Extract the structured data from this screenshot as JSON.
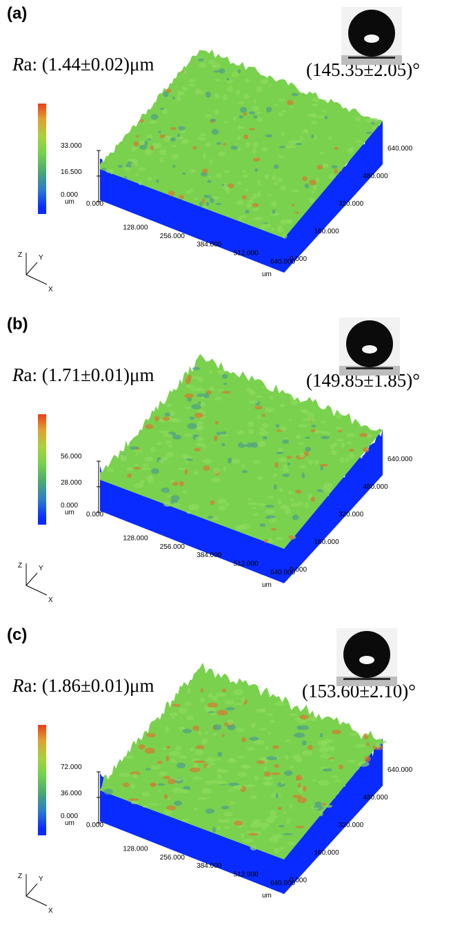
{
  "panels": [
    {
      "label": "(a)",
      "ra_prefix": "R",
      "ra_rest": "a: (1.44±0.02)μm",
      "angle": "(145.35±2.05)°",
      "cb_ticks": [
        "33.000",
        "16.500",
        "0.000"
      ],
      "cb_unit": "um",
      "x_ticks": [
        "0.000",
        "128.000",
        "256.000",
        "384.000",
        "512.000",
        "640.000"
      ],
      "y_ticks": [
        "0.000",
        "160.000",
        "320.000",
        "480.000",
        "640.000"
      ],
      "axis_unit": "um",
      "axes_labels": [
        "Z",
        "Y",
        "X"
      ],
      "roughness": 0.9
    },
    {
      "label": "(b)",
      "ra_prefix": "R",
      "ra_rest": "a: (1.71±0.01)μm",
      "angle": "(149.85±1.85)°",
      "cb_ticks": [
        "56.000",
        "28.000",
        "0.000"
      ],
      "cb_unit": "um",
      "x_ticks": [
        "0.000",
        "128.000",
        "256.000",
        "384.000",
        "512.000",
        "640.000"
      ],
      "y_ticks": [
        "0.000",
        "160.000",
        "320.000",
        "480.000",
        "640.000"
      ],
      "axis_unit": "um",
      "axes_labels": [
        "Z",
        "Y",
        "X"
      ],
      "roughness": 1.3
    },
    {
      "label": "(c)",
      "ra_prefix": "R",
      "ra_rest": "a: (1.86±0.01)μm",
      "angle": "(153.60±2.10)°",
      "cb_ticks": [
        "72.000",
        "36.000",
        "0.000"
      ],
      "cb_unit": "um",
      "x_ticks": [
        "0.000",
        "128.000",
        "256.000",
        "384.000",
        "512.000",
        "640.000"
      ],
      "y_ticks": [
        "0.000",
        "160.000",
        "320.000",
        "480.000",
        "640.000"
      ],
      "axis_unit": "um",
      "axes_labels": [
        "Z",
        "Y",
        "X"
      ],
      "roughness": 1.6
    }
  ],
  "colors": {
    "base_blue": "#0a2bff",
    "surface_green": "#7ad14e",
    "peak_orange": "#d9792e",
    "valley_teal": "#4f9e8a"
  }
}
